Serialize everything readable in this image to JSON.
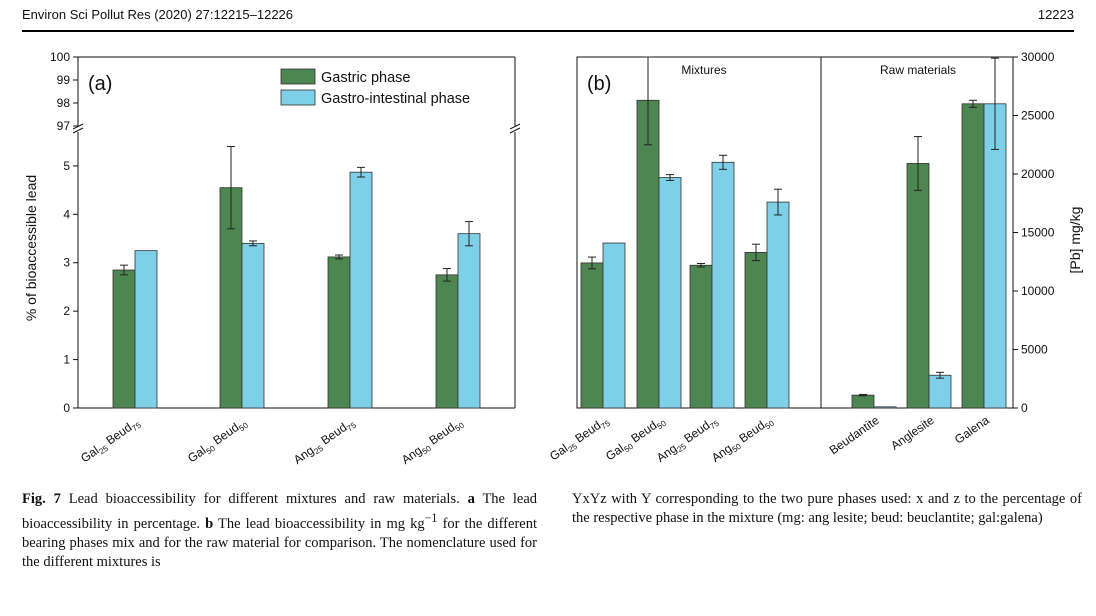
{
  "header": {
    "journal": "Environ Sci Pollut Res (2020) 27:12215–12226",
    "page": "12223"
  },
  "legend": {
    "gastric": "Gastric phase",
    "gi": "Gastro-intestinal phase"
  },
  "colors": {
    "gastric": "#4d8650",
    "gi": "#7ecfe8"
  },
  "chart_data": [
    {
      "type": "bar",
      "panel_label": "(a)",
      "ylabel": "% of bioaccessible lead",
      "axis_break": true,
      "ylim_lower": [
        0,
        5.7
      ],
      "ylim_upper": [
        97,
        100
      ],
      "yticks": [
        0,
        1,
        2,
        3,
        4,
        5,
        97,
        98,
        99,
        100
      ],
      "categories": [
        {
          "base": "Gal",
          "sub1": "25",
          "mid": " Beud",
          "sub2": "75"
        },
        {
          "base": "Gal",
          "sub1": "50",
          "mid": " Beud",
          "sub2": "50"
        },
        {
          "base": "Ang",
          "sub1": "25",
          "mid": " Beud",
          "sub2": "75"
        },
        {
          "base": "Ang",
          "sub1": "50",
          "mid": " Beud",
          "sub2": "50"
        }
      ],
      "series": [
        {
          "name": "Gastric phase",
          "values": [
            2.85,
            4.55,
            3.12,
            2.75
          ],
          "errors": [
            0.1,
            0.85,
            0.04,
            0.13
          ]
        },
        {
          "name": "Gastro-intestinal phase",
          "values": [
            3.25,
            3.4,
            4.87,
            3.6
          ],
          "errors": [
            0,
            0.05,
            0.1,
            0.25
          ]
        }
      ]
    },
    {
      "type": "bar",
      "panel_label": "(b)",
      "ylabel": "[Pb] mg/kg",
      "ylim": [
        0,
        30000
      ],
      "yticks": [
        0,
        5000,
        10000,
        15000,
        20000,
        25000,
        30000
      ],
      "section_labels": [
        "Mixtures",
        "Raw  materials"
      ],
      "categories": [
        {
          "base": "Gal",
          "sub1": "25",
          "mid": " Beud",
          "sub2": "75"
        },
        {
          "base": "Gal",
          "sub1": "50",
          "mid": " Beud",
          "sub2": "50"
        },
        {
          "base": "Ang",
          "sub1": "25",
          "mid": " Beud",
          "sub2": "75"
        },
        {
          "base": "Ang",
          "sub1": "50",
          "mid": " Beud",
          "sub2": "50"
        },
        {
          "base": "Beudantite"
        },
        {
          "base": "Anglesite"
        },
        {
          "base": "Galena"
        }
      ],
      "series": [
        {
          "name": "Gastric phase",
          "values": [
            12400,
            26300,
            12200,
            13300,
            1100,
            20900,
            26000
          ],
          "errors": [
            500,
            3800,
            150,
            700,
            60,
            2300,
            300
          ]
        },
        {
          "name": "Gastro-intestinal phase",
          "values": [
            14100,
            19700,
            21000,
            17600,
            100,
            2800,
            26000
          ],
          "errors": [
            0,
            250,
            600,
            1100,
            0,
            250,
            3900
          ]
        }
      ]
    }
  ],
  "caption": {
    "fig_label": "Fig. 7",
    "text1": " Lead bioaccessibility for different mixtures and raw materials. ",
    "a": "a",
    "text2": " The lead bioaccessibility in percentage. ",
    "b": "b",
    "text3": " The lead bioaccessibility in mg kg",
    "sup": "−1",
    "text4": " for the different bearing phases mix and for the raw material for comparison. The nomenclature used for the different mixtures is",
    "right": "YxYz with Y corresponding to the two pure phases used: x and z to the percentage of the respective phase in the mixture (mg: ang lesite; beud: beuclantite; gal:galena)"
  }
}
